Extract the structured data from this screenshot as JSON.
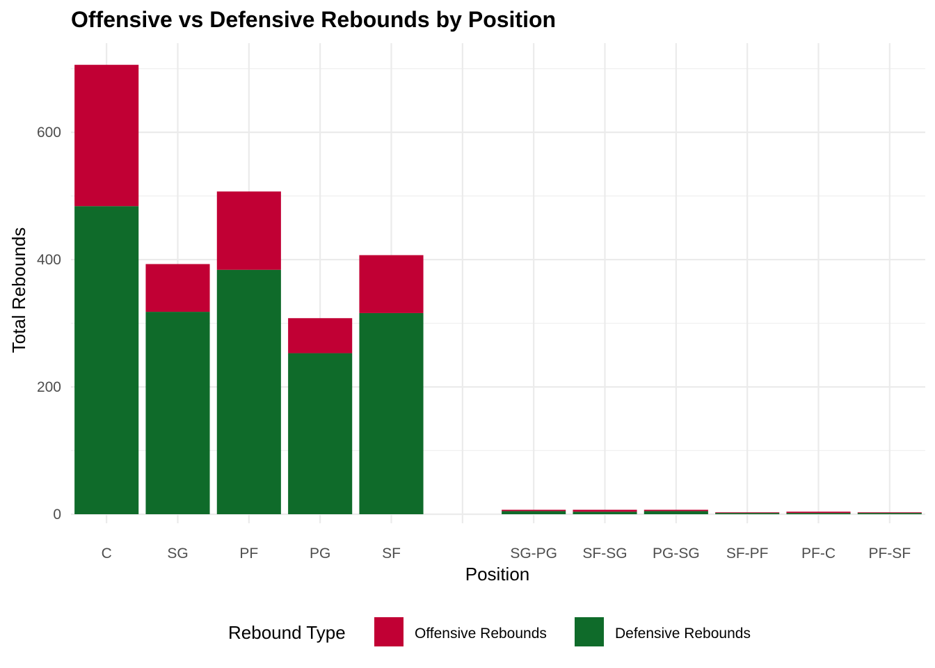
{
  "chart_data": {
    "type": "bar",
    "stacked": true,
    "title": "Offensive vs Defensive Rebounds by Position",
    "xlabel": "Position",
    "ylabel": "Total Rebounds",
    "categories": [
      "C",
      "SG",
      "PF",
      "PG",
      "SF",
      "",
      "SG-PG",
      "SF-SG",
      "PG-SG",
      "SF-PF",
      "PF-C",
      "PF-SF"
    ],
    "series": [
      {
        "name": "Defensive Rebounds",
        "color": "#0f6b2a",
        "values": [
          484,
          318,
          384,
          253,
          316,
          0,
          5,
          4,
          5,
          2,
          2,
          2
        ]
      },
      {
        "name": "Offensive Rebounds",
        "color": "#c10034",
        "values": [
          222,
          75,
          123,
          55,
          91,
          0,
          2,
          3,
          2,
          1,
          2,
          1
        ]
      }
    ],
    "ylim": [
      0,
      730
    ],
    "yticks": [
      0,
      200,
      400,
      600
    ],
    "grid": true,
    "legend": {
      "title": "Rebound Type",
      "position": "bottom",
      "items": [
        {
          "label": "Offensive Rebounds",
          "color": "#c10034"
        },
        {
          "label": "Defensive Rebounds",
          "color": "#0f6b2a"
        }
      ]
    }
  }
}
